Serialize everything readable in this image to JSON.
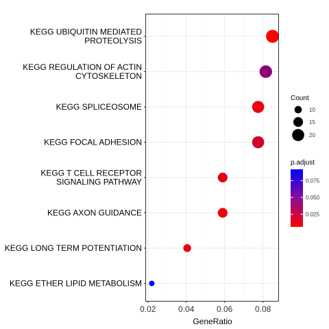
{
  "chart_data": {
    "type": "scatter",
    "title": "",
    "xlabel": "GeneRatio",
    "ylabel": "",
    "xlim": [
      0.019,
      0.088
    ],
    "x_ticks": [
      "0.02",
      "0.04",
      "0.06",
      "0.08"
    ],
    "x_tick_values": [
      0.02,
      0.04,
      0.06,
      0.08
    ],
    "grid": true,
    "legend_position": "right",
    "categories": [
      "KEGG UBIQUITIN MEDIATED\nPROTEOLYSIS",
      "KEGG REGULATION OF ACTIN\nCYTOSKELETON",
      "KEGG SPLICEOSOME",
      "KEGG FOCAL ADHESION",
      "KEGG T CELL RECEPTOR\nSIGNALING PATHWAY",
      "KEGG AXON GUIDANCE",
      "KEGG LONG TERM POTENTIATION",
      "KEGG ETHER LIPID METABOLISM"
    ],
    "points": [
      {
        "category": "KEGG UBIQUITIN MEDIATED\nPROTEOLYSIS",
        "x": 0.085,
        "count": 22,
        "p_adjust": 0.006
      },
      {
        "category": "KEGG REGULATION OF ACTIN\nCYTOSKELETON",
        "x": 0.0815,
        "count": 21,
        "p_adjust": 0.045
      },
      {
        "category": "KEGG SPLICEOSOME",
        "x": 0.0775,
        "count": 20,
        "p_adjust": 0.012
      },
      {
        "category": "KEGG FOCAL ADHESION",
        "x": 0.0775,
        "count": 20,
        "p_adjust": 0.02
      },
      {
        "category": "KEGG T CELL RECEPTOR\nSIGNALING PATHWAY",
        "x": 0.059,
        "count": 15,
        "p_adjust": 0.015
      },
      {
        "category": "KEGG AXON GUIDANCE",
        "x": 0.059,
        "count": 15,
        "p_adjust": 0.01
      },
      {
        "category": "KEGG LONG TERM POTENTIATION",
        "x": 0.0405,
        "count": 11,
        "p_adjust": 0.012
      },
      {
        "category": "KEGG ETHER LIPID METABOLISM",
        "x": 0.022,
        "count": 6,
        "p_adjust": 0.092
      }
    ],
    "size_legend": {
      "title": "Count",
      "values": [
        10,
        15,
        20
      ],
      "labels": [
        "10",
        "15",
        "20"
      ]
    },
    "color_legend": {
      "title": "p.adjust",
      "min": 0.006,
      "max": 0.092,
      "ticks": [
        0.025,
        0.05,
        0.075
      ],
      "tick_labels": [
        "0.025",
        "0.050",
        "0.075"
      ],
      "low_color": "#ff0000",
      "high_color": "#0000ff"
    }
  }
}
